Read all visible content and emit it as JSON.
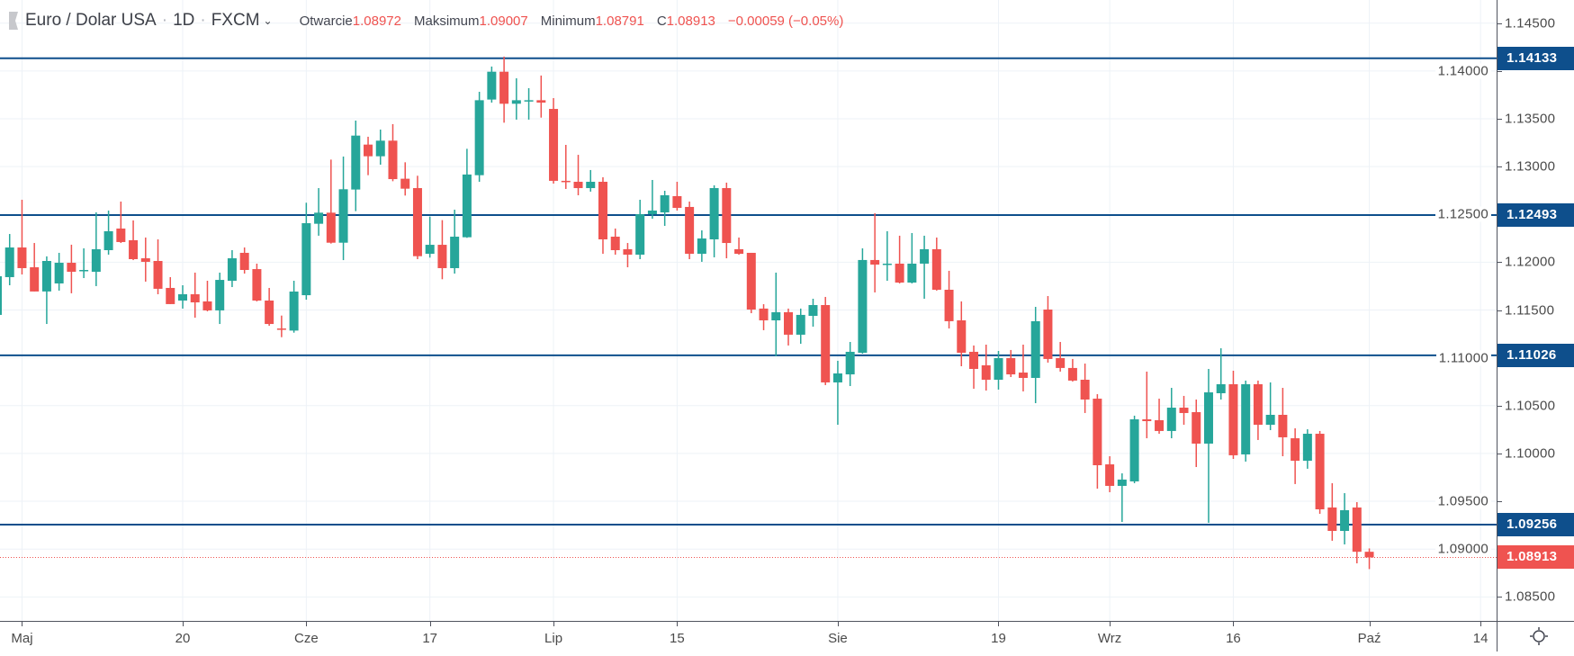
{
  "header": {
    "symbol": "Euro / Dolar USA",
    "interval": "1D",
    "exchange": "FXCM",
    "sep": "·",
    "open_label": "Otwarcie",
    "open": "1.08972",
    "high_label": "Maksimum",
    "high": "1.09007",
    "low_label": "Minimum",
    "low": "1.08791",
    "close_label": "C",
    "close": "1.08913",
    "change": "−0.00059 (−0.05%)"
  },
  "colors": {
    "up": "#26a69a",
    "down": "#ef5350",
    "level": "#0e4f8c",
    "last": "#ef5350",
    "grid": "#edf2f7"
  },
  "chart_data": {
    "type": "candlestick",
    "title": "Euro / Dolar USA · 1D · FXCM",
    "ylim": [
      1.08249,
      1.14742
    ],
    "xlim_bars": [
      -1.78,
      119.3
    ],
    "first_bar_index": -2,
    "grid": true,
    "y_ticks": [
      "1.14500",
      "1.14000",
      "1.13500",
      "1.13000",
      "1.12500",
      "1.12000",
      "1.11500",
      "1.11000",
      "1.10500",
      "1.10000",
      "1.09500",
      "1.09000",
      "1.08500"
    ],
    "x_ticks": [
      {
        "label": "Maj",
        "bar": 0
      },
      {
        "label": "20",
        "bar": 13
      },
      {
        "label": "Cze",
        "bar": 23
      },
      {
        "label": "17",
        "bar": 33
      },
      {
        "label": "Lip",
        "bar": 43
      },
      {
        "label": "15",
        "bar": 53
      },
      {
        "label": "Sie",
        "bar": 66
      },
      {
        "label": "19",
        "bar": 79
      },
      {
        "label": "Wrz",
        "bar": 88
      },
      {
        "label": "16",
        "bar": 98
      },
      {
        "label": "Paź",
        "bar": 109
      },
      {
        "label": "14",
        "bar": 118
      }
    ],
    "levels": [
      "1.14133",
      "1.12493",
      "1.11026",
      "1.09256"
    ],
    "last_price": "1.08913",
    "ohlc": [
      [
        1.11449,
        1.11919,
        1.11449,
        1.11853
      ],
      [
        1.11844,
        1.12295,
        1.11759,
        1.12154
      ],
      [
        1.12154,
        1.12653,
        1.11872,
        1.11938
      ],
      [
        1.11947,
        1.12201,
        1.11694,
        1.11694
      ],
      [
        1.11694,
        1.12061,
        1.11354,
        1.12013
      ],
      [
        1.11778,
        1.12098,
        1.11703,
        1.11994
      ],
      [
        1.11994,
        1.12183,
        1.11675,
        1.119
      ],
      [
        1.1191,
        1.12145,
        1.11834,
        1.11919
      ],
      [
        1.119,
        1.12521,
        1.1175,
        1.12136
      ],
      [
        1.12126,
        1.1254,
        1.12079,
        1.12324
      ],
      [
        1.12352,
        1.12634,
        1.12201,
        1.12211
      ],
      [
        1.1223,
        1.12437,
        1.12022,
        1.12032
      ],
      [
        1.12041,
        1.12258,
        1.11797,
        1.12004
      ],
      [
        1.12013,
        1.12239,
        1.11665,
        1.11722
      ],
      [
        1.11731,
        1.11844,
        1.11562,
        1.11562
      ],
      [
        1.11599,
        1.11759,
        1.11515,
        1.11665
      ],
      [
        1.11665,
        1.11891,
        1.1142,
        1.1158
      ],
      [
        1.1159,
        1.11806,
        1.11486,
        1.11496
      ],
      [
        1.11496,
        1.11891,
        1.11354,
        1.11815
      ],
      [
        1.11806,
        1.12126,
        1.1174,
        1.12041
      ],
      [
        1.12098,
        1.12154,
        1.11881,
        1.11919
      ],
      [
        1.11928,
        1.11985,
        1.1159,
        1.11599
      ],
      [
        1.11599,
        1.11731,
        1.11335,
        1.11354
      ],
      [
        1.11307,
        1.11442,
        1.11216,
        1.11295
      ],
      [
        1.11285,
        1.11806,
        1.11263,
        1.11693
      ],
      [
        1.11655,
        1.12622,
        1.11608,
        1.12408
      ],
      [
        1.12402,
        1.12775,
        1.12277,
        1.12518
      ],
      [
        1.12518,
        1.13073,
        1.12195,
        1.12204
      ],
      [
        1.12204,
        1.13105,
        1.12022,
        1.12763
      ],
      [
        1.1276,
        1.13481,
        1.12534,
        1.13324
      ],
      [
        1.1323,
        1.13312,
        1.1291,
        1.13108
      ],
      [
        1.13108,
        1.13387,
        1.1302,
        1.13271
      ],
      [
        1.13271,
        1.13444,
        1.12847,
        1.12869
      ],
      [
        1.12873,
        1.13045,
        1.12697,
        1.12769
      ],
      [
        1.12775,
        1.12904,
        1.12032,
        1.12063
      ],
      [
        1.12088,
        1.12477,
        1.12048,
        1.12182
      ],
      [
        1.12182,
        1.1244,
        1.11822,
        1.11938
      ],
      [
        1.11938,
        1.12549,
        1.11881,
        1.12267
      ],
      [
        1.12261,
        1.13186,
        1.12255,
        1.12917
      ],
      [
        1.1291,
        1.13782,
        1.12841,
        1.13694
      ],
      [
        1.13701,
        1.14046,
        1.13669,
        1.13992
      ],
      [
        1.13992,
        1.1415,
        1.13459,
        1.13657
      ],
      [
        1.13657,
        1.13923,
        1.13491,
        1.13694
      ],
      [
        1.13688,
        1.1382,
        1.13491,
        1.13694
      ],
      [
        1.13694,
        1.13952,
        1.13512,
        1.13669
      ],
      [
        1.13603,
        1.13716,
        1.12822,
        1.12851
      ],
      [
        1.12851,
        1.13227,
        1.12766,
        1.12841
      ],
      [
        1.12841,
        1.13123,
        1.127,
        1.12775
      ],
      [
        1.12775,
        1.12964,
        1.12738,
        1.12841
      ],
      [
        1.12841,
        1.12888,
        1.12088,
        1.12239
      ],
      [
        1.12267,
        1.12352,
        1.12079,
        1.12126
      ],
      [
        1.12136,
        1.12201,
        1.11947,
        1.12079
      ],
      [
        1.12079,
        1.12653,
        1.12032,
        1.12502
      ],
      [
        1.12502,
        1.1286,
        1.12455,
        1.1254
      ],
      [
        1.12521,
        1.12747,
        1.1238,
        1.127
      ],
      [
        1.12691,
        1.12841,
        1.1254,
        1.12568
      ],
      [
        1.12578,
        1.12634,
        1.12032,
        1.12088
      ],
      [
        1.12088,
        1.12333,
        1.12004,
        1.12248
      ],
      [
        1.12239,
        1.12804,
        1.12051,
        1.12775
      ],
      [
        1.12775,
        1.12832,
        1.12041,
        1.12201
      ],
      [
        1.12136,
        1.12258,
        1.12079,
        1.12088
      ],
      [
        1.12098,
        1.12098,
        1.11467,
        1.11505
      ],
      [
        1.11515,
        1.11561,
        1.11289,
        1.11392
      ],
      [
        1.11392,
        1.11891,
        1.11016,
        1.11477
      ],
      [
        1.11477,
        1.11515,
        1.11129,
        1.11242
      ],
      [
        1.11242,
        1.11515,
        1.11147,
        1.11449
      ],
      [
        1.11439,
        1.11618,
        1.11326,
        1.11552
      ],
      [
        1.11552,
        1.11637,
        1.10715,
        1.10743
      ],
      [
        1.10743,
        1.10969,
        1.103,
        1.10837
      ],
      [
        1.10827,
        1.11166,
        1.10705,
        1.11063
      ],
      [
        1.11053,
        1.12145,
        1.11044,
        1.12023
      ],
      [
        1.12023,
        1.12512,
        1.11684,
        1.11975
      ],
      [
        1.11975,
        1.12324,
        1.11806,
        1.11985
      ],
      [
        1.11985,
        1.12277,
        1.11778,
        1.11787
      ],
      [
        1.11787,
        1.12305,
        1.11778,
        1.11985
      ],
      [
        1.11985,
        1.12277,
        1.11618,
        1.12136
      ],
      [
        1.12136,
        1.12258,
        1.11703,
        1.11712
      ],
      [
        1.11712,
        1.1191,
        1.11307,
        1.11383
      ],
      [
        1.11392,
        1.1159,
        1.10912,
        1.11053
      ],
      [
        1.11063,
        1.11129,
        1.10677,
        1.10884
      ],
      [
        1.10922,
        1.11138,
        1.10658,
        1.10771
      ],
      [
        1.10771,
        1.11072,
        1.10668,
        1.10997
      ],
      [
        1.10997,
        1.11082,
        1.10799,
        1.10827
      ],
      [
        1.10846,
        1.11138,
        1.10649,
        1.1079
      ],
      [
        1.1079,
        1.11533,
        1.10526,
        1.11383
      ],
      [
        1.11505,
        1.11646,
        1.1095,
        1.10988
      ],
      [
        1.10997,
        1.11166,
        1.10856,
        1.10894
      ],
      [
        1.10894,
        1.10988,
        1.10752,
        1.10762
      ],
      [
        1.10771,
        1.1094,
        1.10423,
        1.10564
      ],
      [
        1.10573,
        1.1062,
        1.09632,
        1.09877
      ],
      [
        1.09886,
        1.09971,
        1.09595,
        1.09661
      ],
      [
        1.09661,
        1.09792,
        1.09284,
        1.09727
      ],
      [
        1.09708,
        1.10395,
        1.09689,
        1.10357
      ],
      [
        1.10357,
        1.10856,
        1.10159,
        1.10338
      ],
      [
        1.10348,
        1.10573,
        1.10206,
        1.10235
      ],
      [
        1.10235,
        1.10686,
        1.10159,
        1.10479
      ],
      [
        1.10479,
        1.10602,
        1.103,
        1.10423
      ],
      [
        1.10432,
        1.10564,
        1.09858,
        1.10103
      ],
      [
        1.10103,
        1.10884,
        1.09275,
        1.10639
      ],
      [
        1.1063,
        1.111,
        1.10564,
        1.10724
      ],
      [
        1.10724,
        1.10865,
        1.09943,
        1.09981
      ],
      [
        1.0999,
        1.10762,
        1.09915,
        1.10724
      ],
      [
        1.10724,
        1.10762,
        1.10141,
        1.103
      ],
      [
        1.103,
        1.10743,
        1.10244,
        1.10404
      ],
      [
        1.10404,
        1.10686,
        1.09971,
        1.10169
      ],
      [
        1.10159,
        1.10263,
        1.0968,
        1.09924
      ],
      [
        1.09924,
        1.10253,
        1.0984,
        1.10206
      ],
      [
        1.10206,
        1.10235,
        1.09369,
        1.09416
      ],
      [
        1.09435,
        1.09689,
        1.09087,
        1.0919
      ],
      [
        1.0919,
        1.09585,
        1.09049,
        1.09407
      ],
      [
        1.09435,
        1.09491,
        1.08851,
        1.08972
      ],
      [
        1.08972,
        1.09007,
        1.08791,
        1.08913
      ]
    ]
  }
}
